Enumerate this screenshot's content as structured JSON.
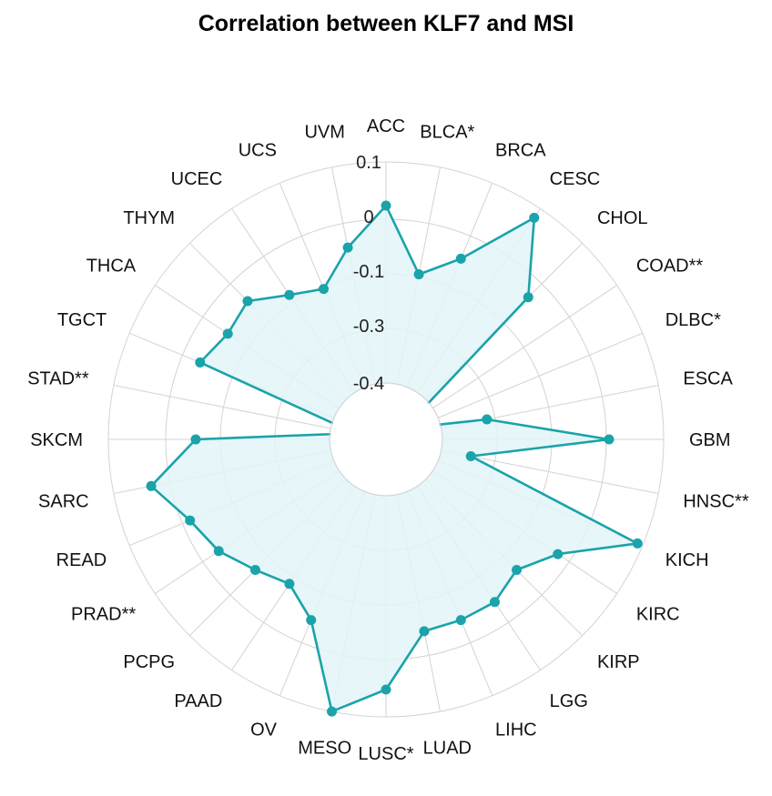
{
  "chart_data": {
    "type": "radar",
    "title": "Correlation between KLF7 and MSI",
    "categories": [
      "ACC",
      "BLCA*",
      "BRCA",
      "CESC",
      "CHOL",
      "COAD**",
      "DLBC*",
      "ESCA",
      "GBM",
      "HNSC**",
      "KICH",
      "KIRC",
      "KIRP",
      "LGG",
      "LIHC",
      "LUAD",
      "LUSC*",
      "MESO",
      "OV",
      "PAAD",
      "PCPG",
      "PRAD**",
      "READ",
      "SARC",
      "SKCM",
      "STAD**",
      "TGCT",
      "THCA",
      "THYM",
      "UCEC",
      "UCS",
      "UVM"
    ],
    "values": [
      0.02,
      -0.1,
      -0.05,
      0.08,
      -0.04,
      -0.36,
      -0.35,
      -0.22,
      0.0,
      -0.25,
      0.09,
      -0.03,
      -0.07,
      -0.05,
      -0.05,
      -0.05,
      0.05,
      0.1,
      -0.05,
      -0.09,
      -0.07,
      -0.04,
      -0.02,
      0.03,
      -0.06,
      -0.35,
      -0.04,
      -0.06,
      -0.05,
      -0.09,
      -0.11,
      -0.05
    ],
    "rticks": [
      "0.1",
      "0",
      "-0.1",
      "-0.3",
      "-0.4"
    ],
    "colors": {
      "line": "#1aa3aa",
      "fill": "#e3f5f8",
      "grid": "#d3d3d3"
    }
  }
}
